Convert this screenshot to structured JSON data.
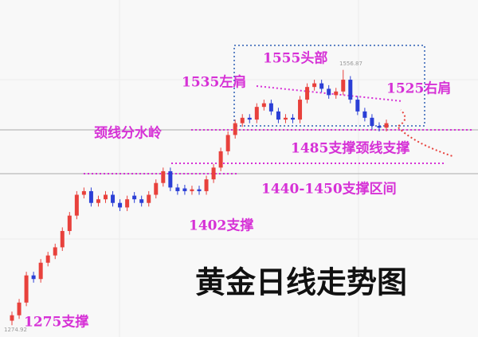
{
  "chart_data": {
    "type": "candlestick",
    "title": "黄金日线走势图",
    "open": [
      1280,
      1286,
      1300,
      1330,
      1326,
      1344,
      1352,
      1361,
      1379,
      1396,
      1419,
      1423,
      1410,
      1414,
      1419,
      1410,
      1405,
      1418,
      1414,
      1410,
      1419,
      1432,
      1445,
      1427,
      1426,
      1423,
      1425,
      1423,
      1436,
      1449,
      1467,
      1485,
      1498,
      1504,
      1502,
      1516,
      1520,
      1511,
      1502,
      1504,
      1502,
      1524,
      1538,
      1542,
      1536,
      1529,
      1533,
      1546,
      1524,
      1511,
      1504,
      1495,
      1493
    ],
    "high": [
      1290,
      1304,
      1334,
      1334,
      1348,
      1356,
      1365,
      1383,
      1400,
      1423,
      1427,
      1427,
      1418,
      1423,
      1423,
      1414,
      1418,
      1422,
      1418,
      1423,
      1436,
      1449,
      1449,
      1431,
      1430,
      1429,
      1429,
      1440,
      1453,
      1471,
      1489,
      1502,
      1508,
      1508,
      1520,
      1524,
      1524,
      1515,
      1508,
      1508,
      1528,
      1542,
      1546,
      1546,
      1540,
      1537,
      1556.87,
      1550,
      1528,
      1515,
      1508,
      1499,
      1502
    ],
    "low": [
      1274.92,
      1282,
      1296,
      1322,
      1322,
      1340,
      1348,
      1357,
      1375,
      1392,
      1415,
      1406,
      1406,
      1410,
      1406,
      1401,
      1401,
      1410,
      1406,
      1406,
      1415,
      1428,
      1423,
      1419,
      1419,
      1419,
      1419,
      1419,
      1432,
      1445,
      1463,
      1481,
      1494,
      1498,
      1498,
      1512,
      1507,
      1498,
      1498,
      1498,
      1498,
      1520,
      1534,
      1532,
      1525,
      1525,
      1529,
      1520,
      1507,
      1500,
      1491,
      1489,
      1489
    ],
    "close": [
      1286,
      1300,
      1330,
      1326,
      1344,
      1352,
      1361,
      1379,
      1396,
      1419,
      1423,
      1410,
      1414,
      1419,
      1410,
      1405,
      1414,
      1414,
      1410,
      1419,
      1432,
      1445,
      1427,
      1423,
      1423,
      1425,
      1423,
      1436,
      1449,
      1467,
      1485,
      1498,
      1504,
      1502,
      1516,
      1520,
      1511,
      1502,
      1504,
      1502,
      1524,
      1538,
      1542,
      1536,
      1529,
      1533,
      1546,
      1524,
      1511,
      1504,
      1495,
      1493,
      1498
    ],
    "up_color": "#e8413c",
    "down_color": "#2b3fd6",
    "ylim": [
      1262,
      1634
    ],
    "annotations": [
      "1555头部",
      "1535左肩",
      "1525右肩",
      "颈线分水岭",
      "1485支撑颈线支撑",
      "1440-1450支撑区间",
      "1402支撑",
      "1275支撑"
    ]
  }
}
